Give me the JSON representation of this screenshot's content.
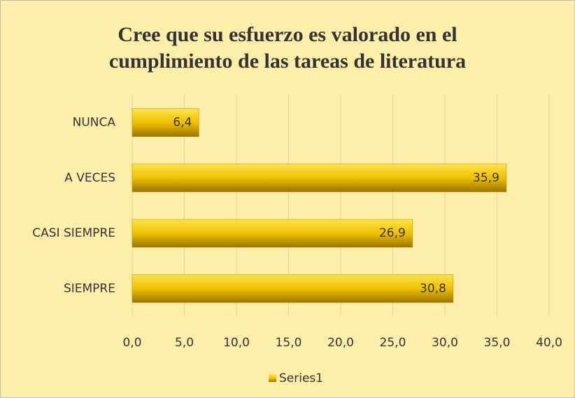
{
  "chart_data": {
    "type": "bar",
    "orientation": "horizontal",
    "title": "Cree que su esfuerzo es valorado en el cumplimiento de las tareas de literatura",
    "categories": [
      "NUNCA",
      "A VECES",
      "CASI SIEMPRE",
      "SIEMPRE"
    ],
    "series": [
      {
        "name": "Series1",
        "color": "#e0b000",
        "values": [
          6.4,
          35.9,
          26.9,
          30.8
        ],
        "value_labels": [
          "6,4",
          "35,9",
          "26,9",
          "30,8"
        ]
      }
    ],
    "xlim": [
      0,
      40
    ],
    "xticks": [
      {
        "value": 0,
        "label": "0,0"
      },
      {
        "value": 5,
        "label": "5,0"
      },
      {
        "value": 10,
        "label": "10,0"
      },
      {
        "value": 15,
        "label": "15,0"
      },
      {
        "value": 20,
        "label": "20,0"
      },
      {
        "value": 25,
        "label": "25,0"
      },
      {
        "value": 30,
        "label": "30,0"
      },
      {
        "value": 35,
        "label": "35,0"
      },
      {
        "value": 40,
        "label": "40,0"
      }
    ],
    "grid": true,
    "legend": "bottom"
  }
}
